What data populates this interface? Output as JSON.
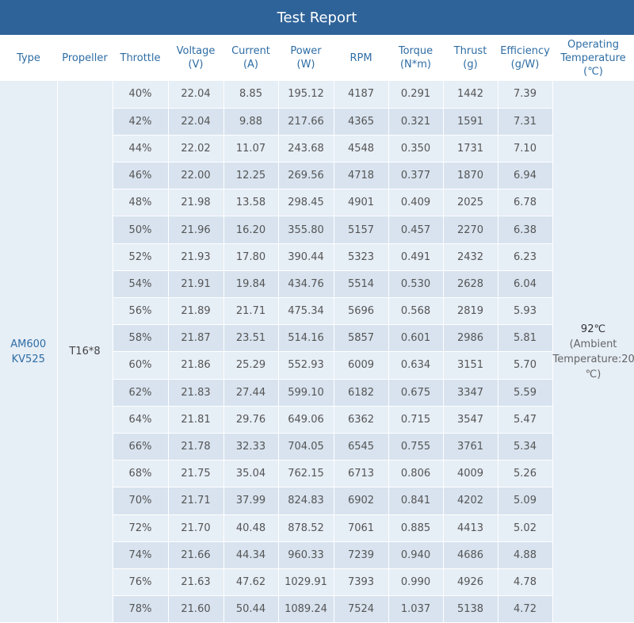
{
  "title": "Test Report",
  "headers": [
    {
      "l1": "Type",
      "l2": "",
      "l3": ""
    },
    {
      "l1": "Propeller",
      "l2": "",
      "l3": ""
    },
    {
      "l1": "Throttle",
      "l2": "",
      "l3": ""
    },
    {
      "l1": "Voltage",
      "l2": "(V)",
      "l3": ""
    },
    {
      "l1": "Current",
      "l2": "(A)",
      "l3": ""
    },
    {
      "l1": "Power",
      "l2": "(W)",
      "l3": ""
    },
    {
      "l1": "RPM",
      "l2": "",
      "l3": ""
    },
    {
      "l1": "Torque",
      "l2": "(N*m)",
      "l3": ""
    },
    {
      "l1": "Thrust",
      "l2": "(g)",
      "l3": ""
    },
    {
      "l1": "Efficiency",
      "l2": "(g/W)",
      "l3": ""
    },
    {
      "l1": "Operating",
      "l2": "Temperature",
      "l3": "(℃)"
    }
  ],
  "type": {
    "line1": "AM600",
    "line2": "KV525"
  },
  "propeller": "T16*8",
  "temperature": {
    "main": "92℃",
    "line2": "(Ambient",
    "line3": "Temperature:20",
    "line4": "℃)"
  },
  "rows": [
    [
      "40%",
      "22.04",
      "8.85",
      "195.12",
      "4187",
      "0.291",
      "1442",
      "7.39"
    ],
    [
      "42%",
      "22.04",
      "9.88",
      "217.66",
      "4365",
      "0.321",
      "1591",
      "7.31"
    ],
    [
      "44%",
      "22.02",
      "11.07",
      "243.68",
      "4548",
      "0.350",
      "1731",
      "7.10"
    ],
    [
      "46%",
      "22.00",
      "12.25",
      "269.56",
      "4718",
      "0.377",
      "1870",
      "6.94"
    ],
    [
      "48%",
      "21.98",
      "13.58",
      "298.45",
      "4901",
      "0.409",
      "2025",
      "6.78"
    ],
    [
      "50%",
      "21.96",
      "16.20",
      "355.80",
      "5157",
      "0.457",
      "2270",
      "6.38"
    ],
    [
      "52%",
      "21.93",
      "17.80",
      "390.44",
      "5323",
      "0.491",
      "2432",
      "6.23"
    ],
    [
      "54%",
      "21.91",
      "19.84",
      "434.76",
      "5514",
      "0.530",
      "2628",
      "6.04"
    ],
    [
      "56%",
      "21.89",
      "21.71",
      "475.34",
      "5696",
      "0.568",
      "2819",
      "5.93"
    ],
    [
      "58%",
      "21.87",
      "23.51",
      "514.16",
      "5857",
      "0.601",
      "2986",
      "5.81"
    ],
    [
      "60%",
      "21.86",
      "25.29",
      "552.93",
      "6009",
      "0.634",
      "3151",
      "5.70"
    ],
    [
      "62%",
      "21.83",
      "27.44",
      "599.10",
      "6182",
      "0.675",
      "3347",
      "5.59"
    ],
    [
      "64%",
      "21.81",
      "29.76",
      "649.06",
      "6362",
      "0.715",
      "3547",
      "5.47"
    ],
    [
      "66%",
      "21.78",
      "32.33",
      "704.05",
      "6545",
      "0.755",
      "3761",
      "5.34"
    ],
    [
      "68%",
      "21.75",
      "35.04",
      "762.15",
      "6713",
      "0.806",
      "4009",
      "5.26"
    ],
    [
      "70%",
      "21.71",
      "37.99",
      "824.83",
      "6902",
      "0.841",
      "4202",
      "5.09"
    ],
    [
      "72%",
      "21.70",
      "40.48",
      "878.52",
      "7061",
      "0.885",
      "4413",
      "5.02"
    ],
    [
      "74%",
      "21.66",
      "44.34",
      "960.33",
      "7239",
      "0.940",
      "4686",
      "4.88"
    ],
    [
      "76%",
      "21.63",
      "47.62",
      "1029.91",
      "7393",
      "0.990",
      "4926",
      "4.78"
    ],
    [
      "78%",
      "21.60",
      "50.44",
      "1089.24",
      "7524",
      "1.037",
      "5138",
      "4.72"
    ]
  ],
  "colors": {
    "header_bar": "#2e6399",
    "header_text": "#2e6da4",
    "row_light": "#e6eef6",
    "row_dark": "#d8e3ef"
  }
}
